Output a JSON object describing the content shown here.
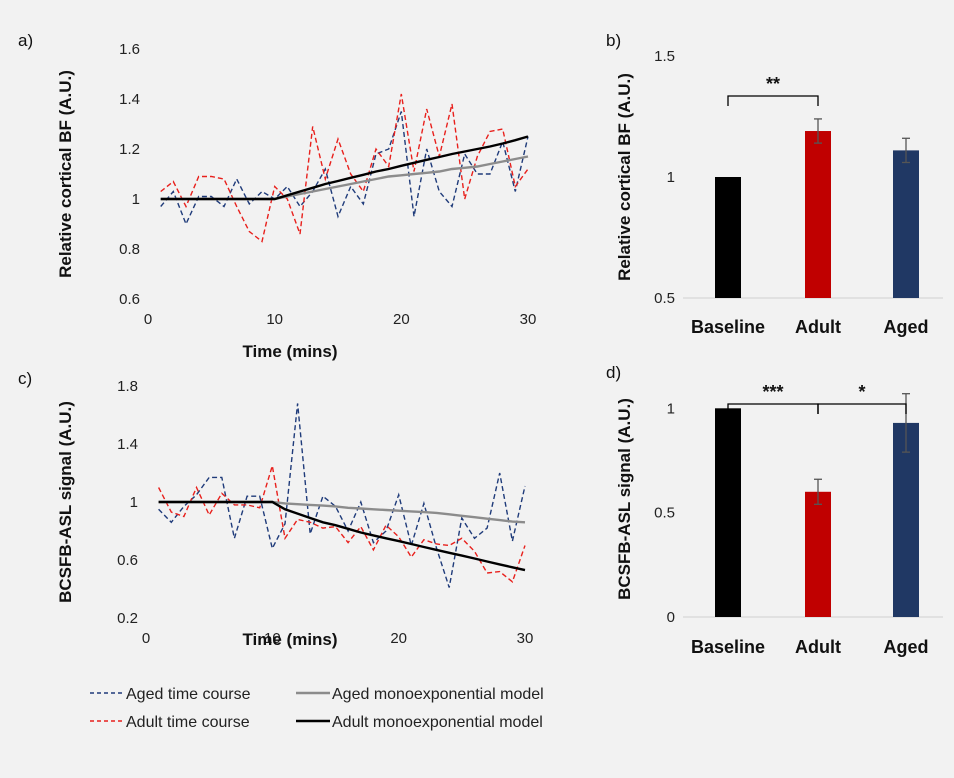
{
  "legend": [
    {
      "label": "Aged time course",
      "color": "#1f3b7a",
      "dash": true
    },
    {
      "label": "Aged monoexponential model",
      "color": "#8c8c8c",
      "dash": false
    },
    {
      "label": "Adult time course",
      "color": "#e8201c",
      "dash": true
    },
    {
      "label": "Adult monoexponential model",
      "color": "#000000",
      "dash": false
    }
  ],
  "chart_data": [
    {
      "panel": "a)",
      "type": "line",
      "xlabel": "Time (mins)",
      "ylabel": "Relative cortical BF (A.U.)",
      "xlim": [
        0,
        30
      ],
      "ylim": [
        0.6,
        1.6
      ],
      "xticks": [
        "0",
        "10",
        "20",
        "30"
      ],
      "yticks": [
        "0.6",
        "0.8",
        "1",
        "1.2",
        "1.4",
        "1.6"
      ],
      "x": [
        1,
        2,
        3,
        4,
        5,
        6,
        7,
        8,
        9,
        10,
        11,
        12,
        13,
        14,
        15,
        16,
        17,
        18,
        19,
        20,
        21,
        22,
        23,
        24,
        25,
        26,
        27,
        28,
        29,
        30
      ],
      "series": [
        {
          "name": "Aged time course",
          "color": "#1f3b7a",
          "dash": true,
          "values": [
            0.97,
            1.03,
            0.9,
            1.01,
            1.01,
            0.97,
            1.08,
            0.98,
            1.03,
            1.0,
            1.05,
            0.97,
            1.03,
            1.12,
            0.93,
            1.05,
            0.98,
            1.18,
            1.2,
            1.35,
            0.93,
            1.2,
            1.03,
            0.97,
            1.18,
            1.1,
            1.1,
            1.23,
            1.03,
            1.25
          ]
        },
        {
          "name": "Adult time course",
          "color": "#e8201c",
          "dash": true,
          "values": [
            1.03,
            1.07,
            0.97,
            1.09,
            1.09,
            1.08,
            0.97,
            0.87,
            0.83,
            1.05,
            1.0,
            0.86,
            1.29,
            1.08,
            1.24,
            1.1,
            1.03,
            1.2,
            1.13,
            1.42,
            1.11,
            1.36,
            1.17,
            1.38,
            1.0,
            1.17,
            1.27,
            1.28,
            1.05,
            1.12
          ]
        },
        {
          "name": "Aged monoexponential model",
          "color": "#8c8c8c",
          "dash": false,
          "values": [
            1,
            1,
            1,
            1,
            1,
            1,
            1,
            1,
            1,
            1,
            1.01,
            1.02,
            1.03,
            1.04,
            1.05,
            1.06,
            1.07,
            1.08,
            1.09,
            1.095,
            1.1,
            1.105,
            1.11,
            1.12,
            1.125,
            1.13,
            1.14,
            1.15,
            1.16,
            1.17
          ]
        },
        {
          "name": "Adult monoexponential model",
          "color": "#000000",
          "dash": false,
          "values": [
            1,
            1,
            1,
            1,
            1,
            1,
            1,
            1,
            1,
            1,
            1.015,
            1.03,
            1.045,
            1.06,
            1.072,
            1.085,
            1.097,
            1.11,
            1.12,
            1.133,
            1.145,
            1.157,
            1.168,
            1.18,
            1.19,
            1.2,
            1.21,
            1.222,
            1.235,
            1.25
          ]
        }
      ]
    },
    {
      "panel": "b)",
      "type": "bar",
      "ylabel": "Relative cortical BF (A.U.)",
      "ylim": [
        0.5,
        1.5
      ],
      "yticks": [
        "0.5",
        "1",
        "1.5"
      ],
      "categories": [
        "Baseline",
        "Adult",
        "Aged"
      ],
      "values": [
        1.0,
        1.19,
        1.11
      ],
      "errors": [
        0,
        0.05,
        0.05
      ],
      "colors": [
        "#000000",
        "#c00000",
        "#203864"
      ],
      "significance": [
        {
          "from": 0,
          "to": 1,
          "label": "**"
        }
      ]
    },
    {
      "panel": "c)",
      "type": "line",
      "xlabel": "Time (mins)",
      "ylabel": "BCSFB-ASL signal (A.U.)",
      "xlim": [
        0,
        30
      ],
      "ylim": [
        0.2,
        1.8
      ],
      "xticks": [
        "0",
        "10",
        "20",
        "30"
      ],
      "yticks": [
        "0.2",
        "0.6",
        "1",
        "1.4",
        "1.8"
      ],
      "x": [
        1,
        2,
        3,
        4,
        5,
        6,
        7,
        8,
        9,
        10,
        11,
        12,
        13,
        14,
        15,
        16,
        17,
        18,
        19,
        20,
        21,
        22,
        23,
        24,
        25,
        26,
        27,
        28,
        29,
        30
      ],
      "series": [
        {
          "name": "Aged time course",
          "color": "#1f3b7a",
          "dash": true,
          "values": [
            0.95,
            0.86,
            0.97,
            1.05,
            1.17,
            1.17,
            0.75,
            1.04,
            1.04,
            0.68,
            0.85,
            1.68,
            0.78,
            1.04,
            0.97,
            0.8,
            1.0,
            0.72,
            0.8,
            1.05,
            0.7,
            0.99,
            0.68,
            0.41,
            0.89,
            0.75,
            0.82,
            1.2,
            0.73,
            1.11
          ]
        },
        {
          "name": "Adult time course",
          "color": "#e8201c",
          "dash": true,
          "values": [
            1.1,
            0.93,
            0.9,
            1.1,
            0.91,
            1.06,
            0.98,
            0.98,
            0.96,
            1.25,
            0.75,
            0.88,
            0.86,
            0.82,
            0.83,
            0.72,
            0.83,
            0.67,
            0.84,
            0.76,
            0.62,
            0.74,
            0.71,
            0.7,
            0.75,
            0.66,
            0.51,
            0.52,
            0.45,
            0.7
          ]
        },
        {
          "name": "Aged monoexponential model",
          "color": "#8c8c8c",
          "dash": false,
          "values": [
            1,
            1,
            1,
            1,
            1,
            1,
            1,
            1,
            1,
            1,
            0.99,
            0.985,
            0.98,
            0.975,
            0.97,
            0.96,
            0.955,
            0.95,
            0.945,
            0.94,
            0.935,
            0.93,
            0.925,
            0.915,
            0.905,
            0.895,
            0.885,
            0.875,
            0.865,
            0.86
          ]
        },
        {
          "name": "Adult monoexponential model",
          "color": "#000000",
          "dash": false,
          "values": [
            1,
            1,
            1,
            1,
            1,
            1,
            1,
            1,
            1,
            1,
            0.95,
            0.92,
            0.89,
            0.86,
            0.84,
            0.815,
            0.79,
            0.77,
            0.75,
            0.73,
            0.71,
            0.69,
            0.67,
            0.65,
            0.63,
            0.61,
            0.59,
            0.57,
            0.55,
            0.53
          ]
        }
      ]
    },
    {
      "panel": "d)",
      "type": "bar",
      "ylabel": "BCSFB-ASL signal (A.U.)",
      "ylim": [
        0,
        1.15
      ],
      "yticks": [
        "0",
        "0.5",
        "1"
      ],
      "categories": [
        "Baseline",
        "Adult",
        "Aged"
      ],
      "values": [
        1.0,
        0.6,
        0.93
      ],
      "errors": [
        0,
        0.06,
        0.14
      ],
      "colors": [
        "#000000",
        "#c00000",
        "#203864"
      ],
      "significance": [
        {
          "from": 0,
          "to": 1,
          "label": "***"
        },
        {
          "from": 1,
          "to": 2,
          "label": "*"
        }
      ]
    }
  ]
}
